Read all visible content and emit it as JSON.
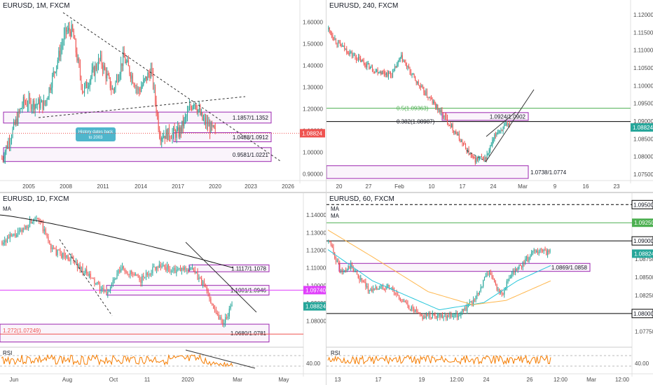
{
  "chart_data": [
    {
      "type": "candlestick",
      "title": "EURUSD, 1M, FXCM",
      "x_ticks": [
        "2005",
        "2008",
        "2011",
        "2014",
        "2017",
        "2020",
        "2023",
        "2026"
      ],
      "y_ticks": [
        "1.60000",
        "1.50000",
        "1.40000",
        "1.30000",
        "1.20000",
        "1.10000",
        "1.00000",
        "0.90000"
      ],
      "ylim": [
        0.87,
        1.67
      ],
      "last_price": "1.08824",
      "zones": [
        "1.1857/1.1352",
        "1.0488/1.0912",
        "0.9581/1.0221"
      ],
      "callout": "History dates back to 2003",
      "colors": {
        "up": "#26a69a",
        "down": "#ef5350",
        "zone": "#9c27b0",
        "price_tag": "#ef5350"
      }
    },
    {
      "type": "candlestick",
      "title": "EURUSD, 240, FXCM",
      "x_ticks": [
        "20",
        "27",
        "Feb",
        "10",
        "17",
        "24",
        "Mar",
        "9",
        "16",
        "23"
      ],
      "y_ticks": [
        "1.12000",
        "1.11500",
        "1.11000",
        "1.10500",
        "1.10000",
        "1.09500",
        "1.09000",
        "1.08500",
        "1.08000",
        "1.07500"
      ],
      "ylim": [
        1.0732,
        1.1222
      ],
      "last_price": "1.08824",
      "levels": [
        "0.5(1.09363)",
        "0.382(1.08987)"
      ],
      "zones": [
        "1.0924/1.0902",
        "1.0738/1.0774"
      ],
      "colors": {
        "up": "#26a69a",
        "down": "#ef5350",
        "fib_05": "#4caf50",
        "price_tag": "#26a69a"
      }
    },
    {
      "type": "candlestick",
      "title": "EURUSD, 1D, FXCM",
      "indicator": "MA",
      "x_ticks": [
        "Jun",
        "Aug",
        "Oct",
        "11",
        "2020",
        "Mar",
        "May"
      ],
      "y_ticks": [
        "1.14000",
        "1.13000",
        "1.12000",
        "1.11000",
        "1.10000",
        "1.09000",
        "1.08000"
      ],
      "ylim": [
        1.071,
        1.1452
      ],
      "price_tags": [
        "1.09740",
        "1.08824"
      ],
      "zones": [
        "1.1117/1.1078",
        "1.1001/1.0946",
        "1.0680/1.0781"
      ],
      "fib_label": "1.272(1.07249)",
      "rsi": {
        "label": "RSI",
        "level": "40.00"
      },
      "colors": {
        "up": "#26a69a",
        "down": "#ef5350",
        "ma": "#000000",
        "price_tag": "#26a69a",
        "tag2": "#e040fb"
      }
    },
    {
      "type": "candlestick",
      "title": "EURUSD, 60, FXCM",
      "indicators": [
        "MA",
        "MA"
      ],
      "x_ticks": [
        "13",
        "17",
        "19",
        "12:00",
        "24",
        "26",
        "12:00",
        "Mar",
        "12:00"
      ],
      "y_ticks": [
        "1.09500",
        "1.09250",
        "1.09000",
        "1.08750",
        "1.08500",
        "1.08250",
        "1.08000",
        "1.07750"
      ],
      "ylim": [
        1.0768,
        1.0958
      ],
      "price_tags": [
        "1.09500",
        "1.09250",
        "1.09000",
        "1.08824",
        "1.08000"
      ],
      "zones": [
        "1.0869/1.0858"
      ],
      "rsi": {
        "label": "RSI",
        "level": "40.00"
      },
      "colors": {
        "up": "#26a69a",
        "down": "#ef5350",
        "ma_fast": "#26c6da",
        "ma_slow": "#ffb74d"
      }
    }
  ]
}
